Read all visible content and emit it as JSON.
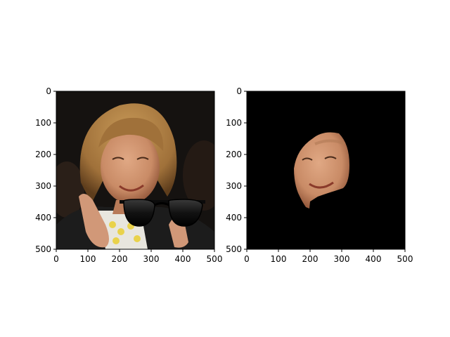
{
  "panels": [
    {
      "id": "left",
      "description_tags": [
        "photo-with-sunglasses-overlay"
      ],
      "x_ticks": [
        "0",
        "100",
        "200",
        "300",
        "400",
        "500"
      ],
      "y_ticks": [
        "0",
        "100",
        "200",
        "300",
        "400",
        "500"
      ],
      "x_range": [
        0,
        500
      ],
      "y_range": [
        0,
        500
      ]
    },
    {
      "id": "right",
      "description_tags": [
        "segmented-face-on-black"
      ],
      "x_ticks": [
        "0",
        "100",
        "200",
        "300",
        "400",
        "500"
      ],
      "y_ticks": [
        "0",
        "100",
        "200",
        "300",
        "400",
        "500"
      ],
      "x_range": [
        0,
        500
      ],
      "y_range": [
        0,
        500
      ]
    }
  ],
  "colors": {
    "background_dark": "#151210",
    "mask_background": "#000000",
    "hair": "#a0713a",
    "skin": "#c98b66",
    "jacket": "#1c1c1c",
    "sunglasses": "#0b0b0b"
  },
  "icons": [
    "sunglasses-icon"
  ]
}
